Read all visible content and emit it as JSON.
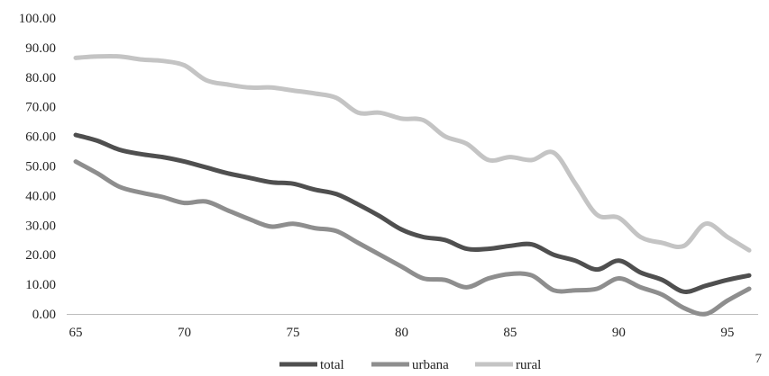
{
  "chart_data": {
    "type": "line",
    "x": [
      65,
      66,
      67,
      68,
      69,
      70,
      71,
      72,
      73,
      74,
      75,
      76,
      77,
      78,
      79,
      80,
      81,
      82,
      83,
      84,
      85,
      86,
      87,
      88,
      89,
      90,
      91,
      92,
      93,
      94,
      95,
      96
    ],
    "series": [
      {
        "name": "total",
        "color": "#4f4f4f",
        "values": [
          60.5,
          58.5,
          55.5,
          54,
          53,
          51.5,
          49.5,
          47.5,
          46,
          44.5,
          44,
          42,
          40.5,
          37,
          33,
          28.5,
          26,
          25,
          22,
          22,
          23,
          23.5,
          20,
          18,
          15,
          18,
          14,
          11.5,
          7.5,
          9.5,
          11.5,
          13
        ]
      },
      {
        "name": "urbana",
        "color": "#8e8e8e",
        "values": [
          51.5,
          47.5,
          43,
          41,
          39.5,
          37.5,
          38,
          35,
          32,
          29.5,
          30.5,
          29,
          28,
          24,
          20,
          16,
          12,
          11.5,
          9,
          12,
          13.5,
          13,
          8,
          8,
          8.5,
          12,
          9,
          6.5,
          2,
          0,
          4.5,
          8.5
        ]
      },
      {
        "name": "rural",
        "color": "#c4c4c4",
        "values": [
          86.5,
          87,
          87,
          86,
          85.5,
          84,
          79,
          77.5,
          76.5,
          76.5,
          75.5,
          74.5,
          73,
          68,
          68,
          66,
          65.5,
          60,
          57.5,
          52,
          53,
          52,
          54.5,
          44,
          33.5,
          32.5,
          26,
          24,
          23,
          30.5,
          26,
          21.5
        ]
      }
    ],
    "xticks": [
      65,
      70,
      75,
      80,
      85,
      90,
      95
    ],
    "yticks": [
      "0.00",
      "10.00",
      "20.00",
      "30.00",
      "40.00",
      "50.00",
      "60.00",
      "70.00",
      "80.00",
      "90.00",
      "100.00"
    ],
    "xlim": [
      65,
      96
    ],
    "ylim": [
      0,
      100
    ],
    "grid": false,
    "legend_position": "bottom-center",
    "xlabel": "",
    "ylabel": "",
    "title": ""
  },
  "page_number": "7"
}
